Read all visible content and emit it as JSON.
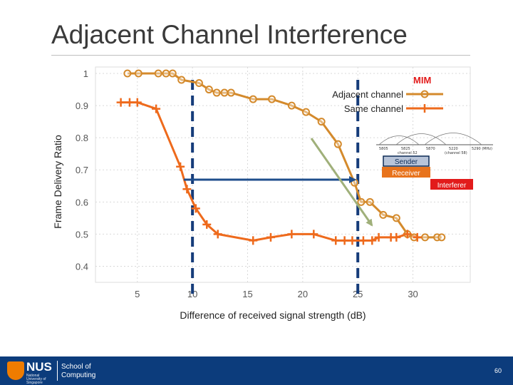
{
  "slide": {
    "title": "Adjacent Channel Interference"
  },
  "chart_data": {
    "type": "line",
    "xlabel": "Difference of received signal strength (dB)",
    "ylabel": "Frame Delivery Ratio",
    "xlim": [
      1.2,
      35.2
    ],
    "ylim": [
      0.35,
      1.02
    ],
    "xticks": [
      5,
      10,
      15,
      20,
      25,
      30
    ],
    "yticks": [
      0.4,
      0.5,
      0.6,
      0.7,
      0.8,
      0.9,
      1
    ],
    "xtick_labels": [
      "5",
      "10",
      "15",
      "20",
      "25",
      "30"
    ],
    "ytick_labels": [
      "0.4",
      "0.5",
      "0.6",
      "0.7",
      "0.8",
      "0.9",
      "1"
    ],
    "legend": {
      "title": "MIM",
      "placement": "top-right"
    },
    "series": [
      {
        "name": "Adjacent channel",
        "marker": "circle",
        "color": "#d48a2c",
        "x": [
          4.1,
          5.1,
          6.9,
          7.6,
          8.2,
          9.0,
          10.6,
          11.5,
          12.2,
          12.9,
          13.5,
          15.5,
          17.2,
          19.0,
          20.3,
          21.7,
          23.2,
          24.7,
          25.3,
          26.1,
          27.3,
          28.5,
          29.5,
          30.1,
          31.1,
          32.2,
          32.6
        ],
        "y": [
          1.0,
          1.0,
          1.0,
          1.0,
          1.0,
          0.98,
          0.97,
          0.95,
          0.94,
          0.94,
          0.94,
          0.92,
          0.92,
          0.9,
          0.88,
          0.85,
          0.78,
          0.66,
          0.6,
          0.6,
          0.56,
          0.55,
          0.5,
          0.49,
          0.49,
          0.49,
          0.49
        ],
        "values": [
          1.0,
          1.0,
          1.0,
          1.0,
          1.0,
          0.98,
          0.97,
          0.95,
          0.94,
          0.94,
          0.94,
          0.92,
          0.92,
          0.9,
          0.88,
          0.85,
          0.78,
          0.66,
          0.6,
          0.6,
          0.56,
          0.55,
          0.5,
          0.49,
          0.49,
          0.49,
          0.49
        ]
      },
      {
        "name": "Same channel",
        "marker": "plus",
        "color": "#ee6a1c",
        "x": [
          3.5,
          4.3,
          5.0,
          6.7,
          8.9,
          9.5,
          10.3,
          11.3,
          12.3,
          15.5,
          17.1,
          19.0,
          21.0,
          23.0,
          23.8,
          24.5,
          25.5,
          26.3,
          26.9,
          28.0,
          28.5,
          29.5,
          30.4
        ],
        "y": [
          0.91,
          0.91,
          0.91,
          0.89,
          0.71,
          0.64,
          0.58,
          0.53,
          0.5,
          0.48,
          0.49,
          0.5,
          0.5,
          0.48,
          0.48,
          0.48,
          0.48,
          0.48,
          0.49,
          0.49,
          0.49,
          0.5,
          0.49
        ],
        "values": [
          0.91,
          0.91,
          0.91,
          0.89,
          0.71,
          0.64,
          0.58,
          0.53,
          0.5,
          0.48,
          0.49,
          0.5,
          0.5,
          0.48,
          0.48,
          0.48,
          0.48,
          0.48,
          0.49,
          0.49,
          0.49,
          0.5,
          0.49
        ]
      }
    ],
    "annotations": {
      "dashed_lines_x": [
        10,
        25
      ],
      "dashed_color": "#163c7a",
      "arrow_color": "#1f4e8c",
      "green_arrow_color": "#a0b07a",
      "spectrum_labels": [
        "5805",
        "5825",
        "5870",
        "5220",
        "5290 (MHz)"
      ],
      "spectrum_channel_labels": [
        "channel 52",
        "(channel 58)"
      ],
      "sender": "Sender",
      "receiver": "Receiver",
      "interferer": "Interferer"
    }
  },
  "footer": {
    "logo_text": "NUS",
    "logo_sub": "National University of Singapore",
    "school": [
      "School of",
      "Computing"
    ],
    "page_number": "60",
    "background": "#0c3c7c"
  }
}
